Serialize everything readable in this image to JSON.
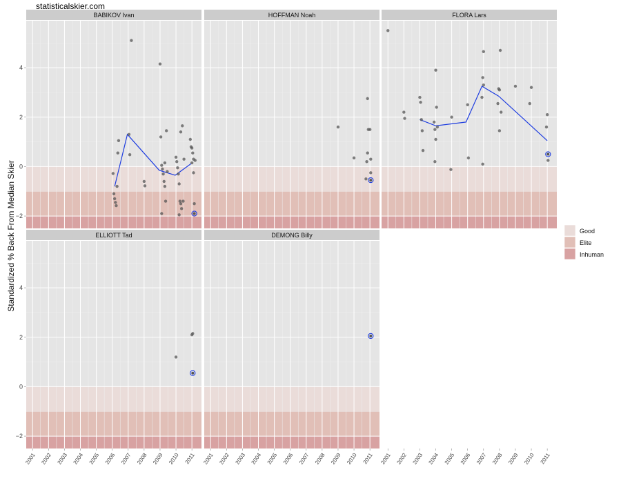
{
  "watermark": "statisticalskier.com",
  "chart_data": {
    "type": "scatter",
    "ylabel": "Standardized % Back From Median Skier",
    "y_ticks": [
      -2,
      0,
      2,
      4
    ],
    "x_ticks": [
      "2001",
      "2002",
      "2003",
      "2004",
      "2005",
      "2006",
      "2007",
      "2008",
      "2009",
      "2010",
      "2011"
    ],
    "xlim": [
      2000.6,
      2011.6
    ],
    "ylim": [
      -2.5,
      5.9
    ],
    "bands": [
      {
        "name": "Good",
        "from": -1,
        "to": 0,
        "color": "#eadcd9"
      },
      {
        "name": "Elite",
        "from": -2,
        "to": -1,
        "color": "#e1bfb7"
      },
      {
        "name": "Inhuman",
        "from": -2.5,
        "to": -2,
        "color": "#d8a2a2"
      }
    ],
    "point_color": "#555555",
    "line_color": "#1f3ee0",
    "highlight_color": "#1f3ee0",
    "panels": [
      {
        "name": "BABIKOV Ivan",
        "points": [
          [
            2006.05,
            -0.28
          ],
          [
            2006.1,
            -1.1
          ],
          [
            2006.15,
            -1.3
          ],
          [
            2006.2,
            -1.45
          ],
          [
            2006.25,
            -1.58
          ],
          [
            2006.3,
            -0.8
          ],
          [
            2006.35,
            0.55
          ],
          [
            2006.4,
            1.05
          ],
          [
            2007.05,
            1.3
          ],
          [
            2007.1,
            0.48
          ],
          [
            2007.2,
            5.1
          ],
          [
            2008.0,
            -0.6
          ],
          [
            2008.05,
            -0.78
          ],
          [
            2009.0,
            4.15
          ],
          [
            2009.05,
            1.2
          ],
          [
            2009.1,
            0.05
          ],
          [
            2009.15,
            -0.1
          ],
          [
            2009.2,
            -0.3
          ],
          [
            2009.25,
            -0.6
          ],
          [
            2009.3,
            -0.8
          ],
          [
            2009.35,
            -1.4
          ],
          [
            2009.1,
            -1.9
          ],
          [
            2009.3,
            0.15
          ],
          [
            2009.4,
            1.45
          ],
          [
            2009.45,
            -0.2
          ],
          [
            2010.0,
            0.38
          ],
          [
            2010.05,
            0.2
          ],
          [
            2010.1,
            -0.05
          ],
          [
            2010.15,
            -0.3
          ],
          [
            2010.2,
            -0.7
          ],
          [
            2010.25,
            -1.4
          ],
          [
            2010.3,
            -1.5
          ],
          [
            2010.35,
            -1.7
          ],
          [
            2010.2,
            -1.95
          ],
          [
            2010.3,
            1.4
          ],
          [
            2010.4,
            1.65
          ],
          [
            2010.45,
            -1.4
          ],
          [
            2010.5,
            0.3
          ],
          [
            2010.9,
            1.1
          ],
          [
            2010.95,
            0.8
          ],
          [
            2011.0,
            0.75
          ],
          [
            2011.05,
            0.55
          ],
          [
            2011.1,
            0.3
          ],
          [
            2011.0,
            0.15
          ],
          [
            2011.1,
            -0.25
          ],
          [
            2011.15,
            -1.5
          ],
          [
            2011.2,
            0.25
          ]
        ],
        "line": [
          [
            2006.15,
            -0.8
          ],
          [
            2006.95,
            1.3
          ],
          [
            2008.95,
            -0.15
          ],
          [
            2009.95,
            -0.35
          ],
          [
            2010.95,
            0.12
          ]
        ],
        "highlight": [
          2011.15,
          -1.9
        ]
      },
      {
        "name": "HOFFMAN Noah",
        "points": [
          [
            2009.0,
            1.6
          ],
          [
            2010.0,
            0.35
          ],
          [
            2010.85,
            2.75
          ],
          [
            2010.9,
            1.5
          ],
          [
            2011.0,
            1.5
          ],
          [
            2010.85,
            0.55
          ],
          [
            2010.8,
            0.2
          ],
          [
            2011.05,
            0.3
          ],
          [
            2010.75,
            -0.5
          ],
          [
            2011.05,
            -0.25
          ]
        ],
        "line": [],
        "highlight": [
          2011.05,
          -0.55
        ]
      },
      {
        "name": "FLORA Lars",
        "points": [
          [
            2001.0,
            5.5
          ],
          [
            2002.0,
            2.2
          ],
          [
            2002.05,
            1.95
          ],
          [
            2003.0,
            2.8
          ],
          [
            2003.05,
            2.6
          ],
          [
            2003.1,
            1.9
          ],
          [
            2003.15,
            1.45
          ],
          [
            2003.2,
            0.65
          ],
          [
            2004.0,
            3.9
          ],
          [
            2004.05,
            2.4
          ],
          [
            2003.9,
            1.8
          ],
          [
            2004.1,
            1.6
          ],
          [
            2003.95,
            1.5
          ],
          [
            2004.0,
            1.1
          ],
          [
            2003.95,
            0.2
          ],
          [
            2005.0,
            2.0
          ],
          [
            2004.95,
            -0.12
          ],
          [
            2006.0,
            2.5
          ],
          [
            2006.05,
            0.35
          ],
          [
            2007.0,
            4.65
          ],
          [
            2006.95,
            3.6
          ],
          [
            2007.0,
            3.3
          ],
          [
            2006.9,
            2.8
          ],
          [
            2006.95,
            0.1
          ],
          [
            2008.05,
            4.7
          ],
          [
            2007.95,
            3.15
          ],
          [
            2008.0,
            3.1
          ],
          [
            2007.9,
            2.55
          ],
          [
            2008.1,
            2.2
          ],
          [
            2008.0,
            1.45
          ],
          [
            2009.0,
            3.25
          ],
          [
            2010.0,
            3.2
          ],
          [
            2009.9,
            2.55
          ],
          [
            2011.0,
            2.1
          ],
          [
            2010.95,
            1.6
          ],
          [
            2011.05,
            0.25
          ]
        ],
        "line": [
          [
            2003.0,
            1.9
          ],
          [
            2004.0,
            1.65
          ],
          [
            2005.9,
            1.8
          ],
          [
            2006.9,
            3.25
          ],
          [
            2007.95,
            2.85
          ],
          [
            2011.0,
            1.05
          ]
        ],
        "highlight": [
          2011.05,
          0.5
        ]
      },
      {
        "name": "ELLIOTT Tad",
        "points": [
          [
            2010.0,
            1.2
          ],
          [
            2011.0,
            2.1
          ],
          [
            2011.05,
            2.15
          ]
        ],
        "line": [],
        "highlight": [
          2011.05,
          0.55
        ]
      },
      {
        "name": "DEMONG Billy",
        "points": [],
        "line": [],
        "highlight": [
          2011.05,
          2.05
        ]
      }
    ],
    "legend": [
      "Good",
      "Elite",
      "Inhuman"
    ]
  }
}
